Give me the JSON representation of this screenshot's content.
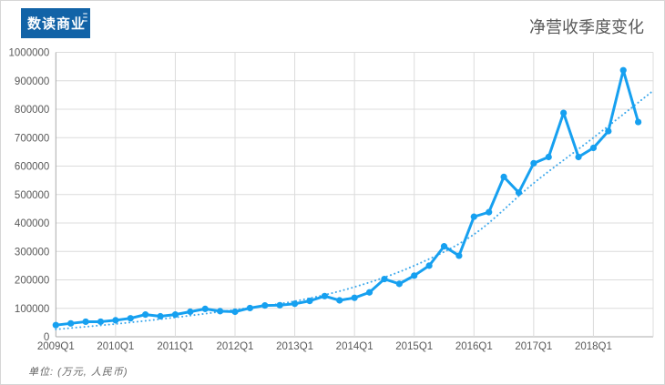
{
  "logo": {
    "text": "数读商业",
    "bg_color": "#1263A7"
  },
  "header": {
    "title": "净营收季度变化"
  },
  "footnote": {
    "text": "单位: (万元, 人民币)"
  },
  "chart_data": {
    "type": "line",
    "title": "净营收季度变化",
    "unit": "万元, 人民币",
    "grid": true,
    "legend": "none",
    "ylim": [
      0,
      1000000
    ],
    "ytick_step": 100000,
    "xtick_labels": [
      "2009Q1",
      "2010Q1",
      "2011Q1",
      "2012Q1",
      "2013Q1",
      "2014Q1",
      "2015Q1",
      "2016Q1",
      "2017Q1",
      "2018Q1"
    ],
    "x_quarters": [
      "2009Q1",
      "2009Q2",
      "2009Q3",
      "2009Q4",
      "2010Q1",
      "2010Q2",
      "2010Q3",
      "2010Q4",
      "2011Q1",
      "2011Q2",
      "2011Q3",
      "2011Q4",
      "2012Q1",
      "2012Q2",
      "2012Q3",
      "2012Q4",
      "2013Q1",
      "2013Q2",
      "2013Q3",
      "2013Q4",
      "2014Q1",
      "2014Q2",
      "2014Q3",
      "2014Q4",
      "2015Q1",
      "2015Q2",
      "2015Q3",
      "2015Q4",
      "2016Q1",
      "2016Q2",
      "2016Q3",
      "2016Q4",
      "2017Q1",
      "2017Q2",
      "2017Q3",
      "2017Q4",
      "2018Q1",
      "2018Q2",
      "2018Q3",
      "2018Q4"
    ],
    "series": [
      {
        "name": "净营收",
        "style": "solid_with_markers",
        "color": "#16A0F0",
        "values": [
          41000,
          47000,
          53000,
          53000,
          58000,
          65000,
          78000,
          72000,
          78000,
          88000,
          98000,
          90000,
          88000,
          101000,
          110000,
          111000,
          116000,
          126000,
          143000,
          128000,
          137000,
          156000,
          203000,
          186000,
          215000,
          250000,
          318000,
          285000,
          422000,
          438000,
          562000,
          507000,
          610000,
          632000,
          787000,
          632000,
          664000,
          723000,
          937000,
          755000
        ]
      },
      {
        "name": "趋势线",
        "style": "dotted",
        "color": "#3FA9EC",
        "x_step": 4,
        "values": [
          26000,
          45000,
          68000,
          95000,
          125000,
          175000,
          250000,
          360000,
          540000,
          700000,
          865000
        ]
      }
    ]
  }
}
